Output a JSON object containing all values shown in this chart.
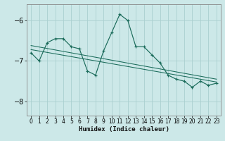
{
  "xlabel": "Humidex (Indice chaleur)",
  "bg_color": "#cce8e8",
  "grid_color": "#aad0d0",
  "line_color": "#1a6b5a",
  "xlim": [
    -0.5,
    23.5
  ],
  "ylim": [
    -8.35,
    -5.6
  ],
  "yticks": [
    -8,
    -7,
    -6
  ],
  "xticks": [
    0,
    1,
    2,
    3,
    4,
    5,
    6,
    7,
    8,
    9,
    10,
    11,
    12,
    13,
    14,
    15,
    16,
    17,
    18,
    19,
    20,
    21,
    22,
    23
  ],
  "series1_x": [
    0,
    1,
    2,
    3,
    4,
    5,
    6,
    7,
    8,
    9,
    10,
    11,
    12,
    13,
    14,
    15,
    16,
    17,
    18,
    19,
    20,
    21,
    22,
    23
  ],
  "series1_y": [
    -6.8,
    -7.0,
    -6.55,
    -6.45,
    -6.45,
    -6.65,
    -6.7,
    -7.25,
    -7.35,
    -6.75,
    -6.3,
    -5.85,
    -6.0,
    -6.65,
    -6.65,
    -6.85,
    -7.05,
    -7.35,
    -7.45,
    -7.5,
    -7.65,
    -7.5,
    -7.6,
    -7.55
  ],
  "trend1_x": [
    0,
    23
  ],
  "trend1_y": [
    -6.72,
    -7.52
  ],
  "trend2_x": [
    0,
    23
  ],
  "trend2_y": [
    -6.62,
    -7.45
  ]
}
